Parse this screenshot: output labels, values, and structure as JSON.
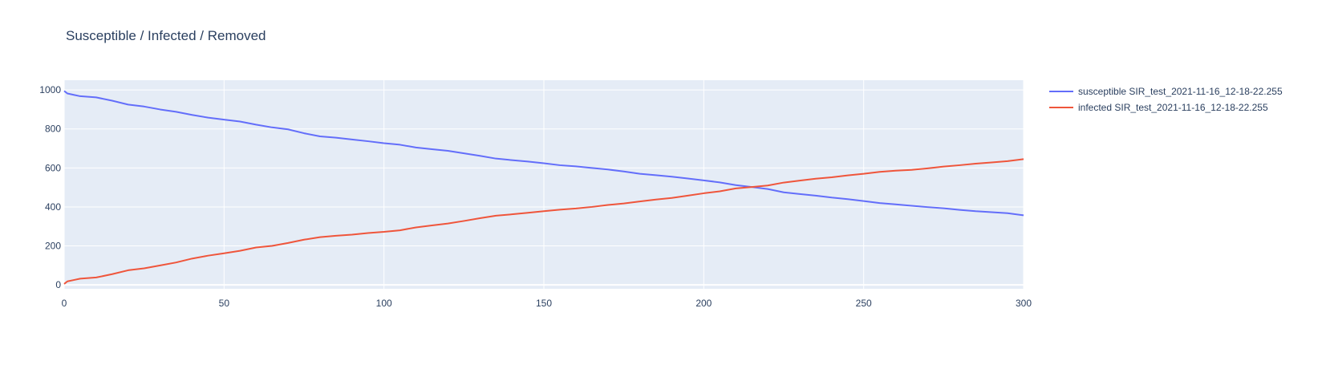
{
  "chart_data": {
    "type": "line",
    "title": "Susceptible / Infected / Removed",
    "xlabel": "",
    "ylabel": "",
    "xlim": [
      0,
      300
    ],
    "ylim": [
      -20,
      1050
    ],
    "x_ticks": [
      0,
      50,
      100,
      150,
      200,
      250,
      300
    ],
    "y_ticks": [
      0,
      200,
      400,
      600,
      800,
      1000
    ],
    "grid": true,
    "legend": "top-right, outside plot",
    "background_color": "#E5ECF6",
    "grid_color": "#FFFFFF",
    "series": [
      {
        "name": "susceptible SIR_test_2021-11-16_12-18-22.255",
        "color": "#636EFA",
        "x": [
          0,
          1,
          3,
          5,
          10,
          15,
          20,
          25,
          30,
          35,
          40,
          45,
          50,
          55,
          60,
          65,
          70,
          75,
          80,
          85,
          90,
          95,
          100,
          105,
          110,
          115,
          120,
          125,
          130,
          135,
          140,
          145,
          150,
          155,
          160,
          165,
          170,
          175,
          180,
          185,
          190,
          195,
          200,
          205,
          210,
          215,
          220,
          225,
          230,
          235,
          240,
          245,
          250,
          255,
          260,
          265,
          270,
          275,
          280,
          285,
          290,
          295,
          300
        ],
        "y": [
          995,
          982,
          975,
          968,
          962,
          945,
          925,
          915,
          900,
          888,
          872,
          858,
          848,
          838,
          822,
          808,
          798,
          778,
          762,
          755,
          746,
          737,
          727,
          719,
          705,
          696,
          688,
          675,
          662,
          648,
          640,
          633,
          624,
          614,
          608,
          600,
          592,
          582,
          570,
          563,
          555,
          546,
          536,
          526,
          512,
          502,
          492,
          475,
          466,
          458,
          448,
          440,
          430,
          420,
          413,
          406,
          399,
          393,
          385,
          378,
          373,
          368,
          357
        ]
      },
      {
        "name": "infected SIR_test_2021-11-16_12-18-22.255",
        "color": "#EF553B",
        "x": [
          0,
          1,
          3,
          5,
          10,
          15,
          20,
          25,
          30,
          35,
          40,
          45,
          50,
          55,
          60,
          65,
          70,
          75,
          80,
          85,
          90,
          95,
          100,
          105,
          110,
          115,
          120,
          125,
          130,
          135,
          140,
          145,
          150,
          155,
          160,
          165,
          170,
          175,
          180,
          185,
          190,
          195,
          200,
          205,
          210,
          215,
          220,
          225,
          230,
          235,
          240,
          245,
          250,
          255,
          260,
          265,
          270,
          275,
          280,
          285,
          290,
          295,
          300
        ],
        "y": [
          5,
          18,
          25,
          32,
          38,
          55,
          75,
          85,
          100,
          115,
          135,
          150,
          162,
          175,
          192,
          200,
          215,
          232,
          245,
          252,
          258,
          266,
          272,
          280,
          295,
          305,
          315,
          328,
          342,
          355,
          362,
          370,
          378,
          386,
          392,
          400,
          410,
          418,
          428,
          438,
          446,
          458,
          470,
          480,
          495,
          502,
          510,
          525,
          535,
          545,
          552,
          562,
          570,
          580,
          586,
          590,
          598,
          607,
          614,
          622,
          628,
          635,
          645
        ]
      }
    ]
  }
}
